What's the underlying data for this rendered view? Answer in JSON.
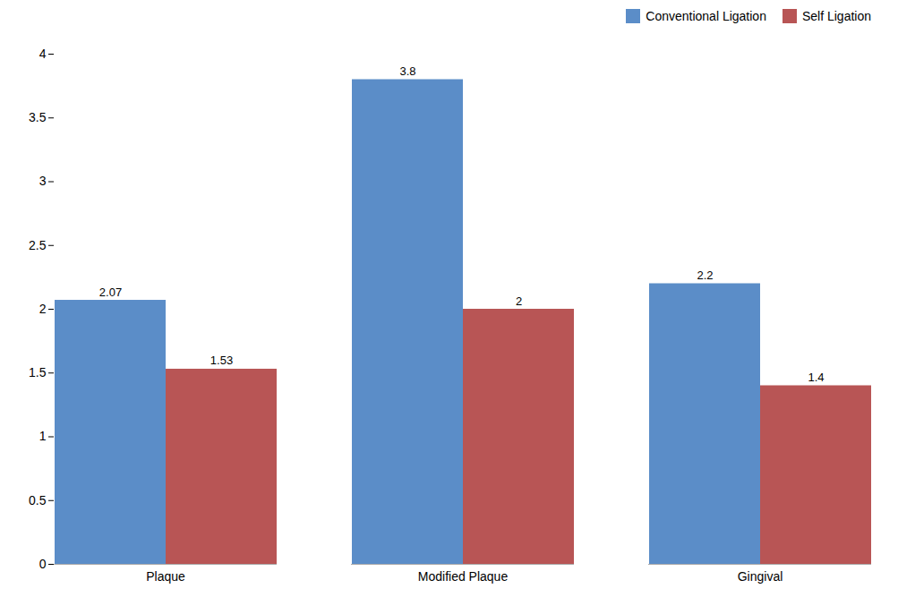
{
  "chart_data": {
    "type": "bar",
    "categories": [
      "Plaque",
      "Modified Plaque",
      "Gingival"
    ],
    "series": [
      {
        "name": "Conventional Ligation",
        "color": "#5B8DC8",
        "values": [
          2.07,
          3.8,
          2.2
        ]
      },
      {
        "name": "Self Ligation",
        "color": "#B85555",
        "values": [
          1.53,
          2.0,
          1.4
        ]
      }
    ],
    "ylim": [
      0,
      4
    ],
    "yticks": [
      0,
      0.5,
      1,
      1.5,
      2,
      2.5,
      3,
      3.5,
      4
    ],
    "grid": false,
    "legend": "upper right",
    "data_labels": true
  }
}
